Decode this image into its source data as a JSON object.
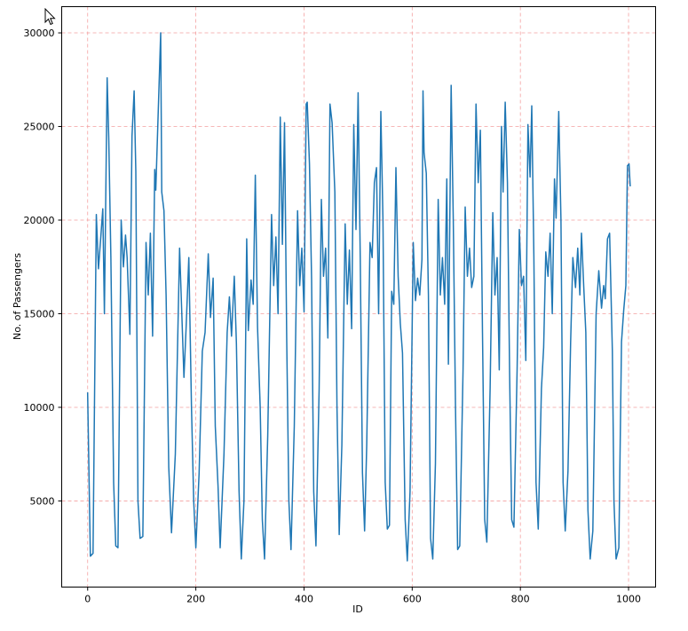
{
  "colors": {
    "line": "#1f77b4",
    "grid": "#f4a0a0",
    "axes": "#000000",
    "background": "#ffffff"
  },
  "icons": {
    "cursor": "mouse-pointer-icon"
  },
  "chart_data": {
    "type": "line",
    "title": "",
    "xlabel": "ID",
    "ylabel": "No. of Passengers",
    "xlim": [
      -48,
      1050
    ],
    "ylim": [
      400,
      31400
    ],
    "xticks": [
      0,
      200,
      400,
      600,
      800,
      1000
    ],
    "xtick_labels": [
      "0",
      "200",
      "400",
      "600",
      "800",
      "1000"
    ],
    "yticks": [
      5000,
      10000,
      15000,
      20000,
      25000,
      30000
    ],
    "ytick_labels": [
      "5000",
      "10000",
      "15000",
      "20000",
      "25000",
      "30000"
    ],
    "grid": true,
    "series": [
      {
        "name": "",
        "points": [
          [
            0,
            10800
          ],
          [
            5,
            2050
          ],
          [
            10,
            2200
          ],
          [
            16,
            20300
          ],
          [
            20,
            17400
          ],
          [
            24,
            19000
          ],
          [
            28,
            20600
          ],
          [
            31,
            15000
          ],
          [
            36,
            27600
          ],
          [
            39,
            24400
          ],
          [
            43,
            18000
          ],
          [
            48,
            6000
          ],
          [
            52,
            2600
          ],
          [
            56,
            2500
          ],
          [
            62,
            20000
          ],
          [
            66,
            17500
          ],
          [
            70,
            19200
          ],
          [
            73,
            18000
          ],
          [
            78,
            13900
          ],
          [
            82,
            24500
          ],
          [
            86,
            26900
          ],
          [
            89,
            22600
          ],
          [
            93,
            5000
          ],
          [
            97,
            3000
          ],
          [
            102,
            3100
          ],
          [
            108,
            18800
          ],
          [
            112,
            16000
          ],
          [
            116,
            19300
          ],
          [
            120,
            13800
          ],
          [
            124,
            22700
          ],
          [
            126,
            21600
          ],
          [
            135,
            30000
          ],
          [
            137,
            21500
          ],
          [
            141,
            20500
          ],
          [
            145,
            16000
          ],
          [
            150,
            6800
          ],
          [
            155,
            3300
          ],
          [
            162,
            7500
          ],
          [
            170,
            18500
          ],
          [
            174,
            15000
          ],
          [
            178,
            11600
          ],
          [
            182,
            14200
          ],
          [
            187,
            18000
          ],
          [
            192,
            10000
          ],
          [
            196,
            5000
          ],
          [
            200,
            2500
          ],
          [
            206,
            6500
          ],
          [
            212,
            13000
          ],
          [
            217,
            14000
          ],
          [
            223,
            18200
          ],
          [
            227,
            14800
          ],
          [
            232,
            16900
          ],
          [
            236,
            9000
          ],
          [
            241,
            5800
          ],
          [
            245,
            2500
          ],
          [
            252,
            7500
          ],
          [
            258,
            14000
          ],
          [
            262,
            15900
          ],
          [
            266,
            13800
          ],
          [
            271,
            17000
          ],
          [
            275,
            13400
          ],
          [
            280,
            5500
          ],
          [
            284,
            1900
          ],
          [
            289,
            5000
          ],
          [
            294,
            19000
          ],
          [
            297,
            14100
          ],
          [
            302,
            16800
          ],
          [
            306,
            15500
          ],
          [
            310,
            22400
          ],
          [
            314,
            14300
          ],
          [
            319,
            10000
          ],
          [
            323,
            4000
          ],
          [
            327,
            1900
          ],
          [
            333,
            8500
          ],
          [
            340,
            20300
          ],
          [
            344,
            16500
          ],
          [
            348,
            19100
          ],
          [
            352,
            15000
          ],
          [
            356,
            25500
          ],
          [
            360,
            18700
          ],
          [
            364,
            25200
          ],
          [
            368,
            13500
          ],
          [
            372,
            5000
          ],
          [
            376,
            2400
          ],
          [
            382,
            9000
          ],
          [
            388,
            20500
          ],
          [
            392,
            16500
          ],
          [
            396,
            18500
          ],
          [
            400,
            15100
          ],
          [
            404,
            26200
          ],
          [
            406,
            26300
          ],
          [
            410,
            23000
          ],
          [
            414,
            16800
          ],
          [
            418,
            5500
          ],
          [
            422,
            2600
          ],
          [
            428,
            11000
          ],
          [
            432,
            21100
          ],
          [
            436,
            17000
          ],
          [
            440,
            18500
          ],
          [
            444,
            13700
          ],
          [
            448,
            26200
          ],
          [
            452,
            25200
          ],
          [
            457,
            21500
          ],
          [
            461,
            10000
          ],
          [
            465,
            3200
          ],
          [
            470,
            8000
          ],
          [
            476,
            19800
          ],
          [
            480,
            15500
          ],
          [
            484,
            18400
          ],
          [
            488,
            14200
          ],
          [
            492,
            25100
          ],
          [
            496,
            19500
          ],
          [
            500,
            26800
          ],
          [
            504,
            18000
          ],
          [
            508,
            6500
          ],
          [
            512,
            3400
          ],
          [
            516,
            8000
          ],
          [
            522,
            18800
          ],
          [
            526,
            18000
          ],
          [
            530,
            22000
          ],
          [
            534,
            22800
          ],
          [
            538,
            15000
          ],
          [
            542,
            25800
          ],
          [
            546,
            20000
          ],
          [
            550,
            6000
          ],
          [
            554,
            3500
          ],
          [
            558,
            3700
          ],
          [
            562,
            16200
          ],
          [
            566,
            15500
          ],
          [
            570,
            22800
          ],
          [
            574,
            17000
          ],
          [
            578,
            14500
          ],
          [
            582,
            12900
          ],
          [
            587,
            4000
          ],
          [
            591,
            1800
          ],
          [
            596,
            5500
          ],
          [
            602,
            18800
          ],
          [
            606,
            15700
          ],
          [
            610,
            16900
          ],
          [
            614,
            16000
          ],
          [
            618,
            17900
          ],
          [
            620,
            26900
          ],
          [
            622,
            23600
          ],
          [
            626,
            22500
          ],
          [
            630,
            16000
          ],
          [
            634,
            3000
          ],
          [
            638,
            1900
          ],
          [
            643,
            7000
          ],
          [
            648,
            21100
          ],
          [
            652,
            16000
          ],
          [
            656,
            18000
          ],
          [
            660,
            15500
          ],
          [
            664,
            22200
          ],
          [
            667,
            12300
          ],
          [
            672,
            27200
          ],
          [
            676,
            20000
          ],
          [
            680,
            10000
          ],
          [
            684,
            2400
          ],
          [
            688,
            2600
          ],
          [
            694,
            12000
          ],
          [
            698,
            20700
          ],
          [
            702,
            17000
          ],
          [
            706,
            18500
          ],
          [
            710,
            16400
          ],
          [
            714,
            17000
          ],
          [
            718,
            26200
          ],
          [
            722,
            22000
          ],
          [
            726,
            24800
          ],
          [
            730,
            14000
          ],
          [
            734,
            4000
          ],
          [
            738,
            2800
          ],
          [
            744,
            11000
          ],
          [
            749,
            20400
          ],
          [
            753,
            16000
          ],
          [
            757,
            18000
          ],
          [
            761,
            12000
          ],
          [
            765,
            25000
          ],
          [
            768,
            21500
          ],
          [
            772,
            26300
          ],
          [
            776,
            22000
          ],
          [
            780,
            12000
          ],
          [
            784,
            4000
          ],
          [
            788,
            3600
          ],
          [
            794,
            12000
          ],
          [
            798,
            19500
          ],
          [
            802,
            16500
          ],
          [
            806,
            17000
          ],
          [
            810,
            12500
          ],
          [
            814,
            25100
          ],
          [
            818,
            22300
          ],
          [
            821,
            26100
          ],
          [
            825,
            18000
          ],
          [
            829,
            6000
          ],
          [
            833,
            3500
          ],
          [
            839,
            11000
          ],
          [
            843,
            13200
          ],
          [
            847,
            18300
          ],
          [
            851,
            17000
          ],
          [
            855,
            19300
          ],
          [
            859,
            15000
          ],
          [
            863,
            22200
          ],
          [
            866,
            20100
          ],
          [
            871,
            25800
          ],
          [
            875,
            20000
          ],
          [
            879,
            6000
          ],
          [
            883,
            3400
          ],
          [
            888,
            6600
          ],
          [
            893,
            13500
          ],
          [
            897,
            18000
          ],
          [
            902,
            16400
          ],
          [
            906,
            18500
          ],
          [
            910,
            16000
          ],
          [
            913,
            19300
          ],
          [
            917,
            16500
          ],
          [
            921,
            14000
          ],
          [
            925,
            4500
          ],
          [
            929,
            1900
          ],
          [
            934,
            3400
          ],
          [
            940,
            15000
          ],
          [
            945,
            17300
          ],
          [
            950,
            15300
          ],
          [
            954,
            16500
          ],
          [
            957,
            15800
          ],
          [
            961,
            19000
          ],
          [
            965,
            19300
          ],
          [
            970,
            13000
          ],
          [
            973,
            5000
          ],
          [
            977,
            1900
          ],
          [
            982,
            2500
          ],
          [
            987,
            13500
          ],
          [
            991,
            15200
          ],
          [
            995,
            16500
          ],
          [
            998,
            22900
          ],
          [
            1001,
            23000
          ],
          [
            1003,
            21800
          ]
        ]
      }
    ]
  }
}
